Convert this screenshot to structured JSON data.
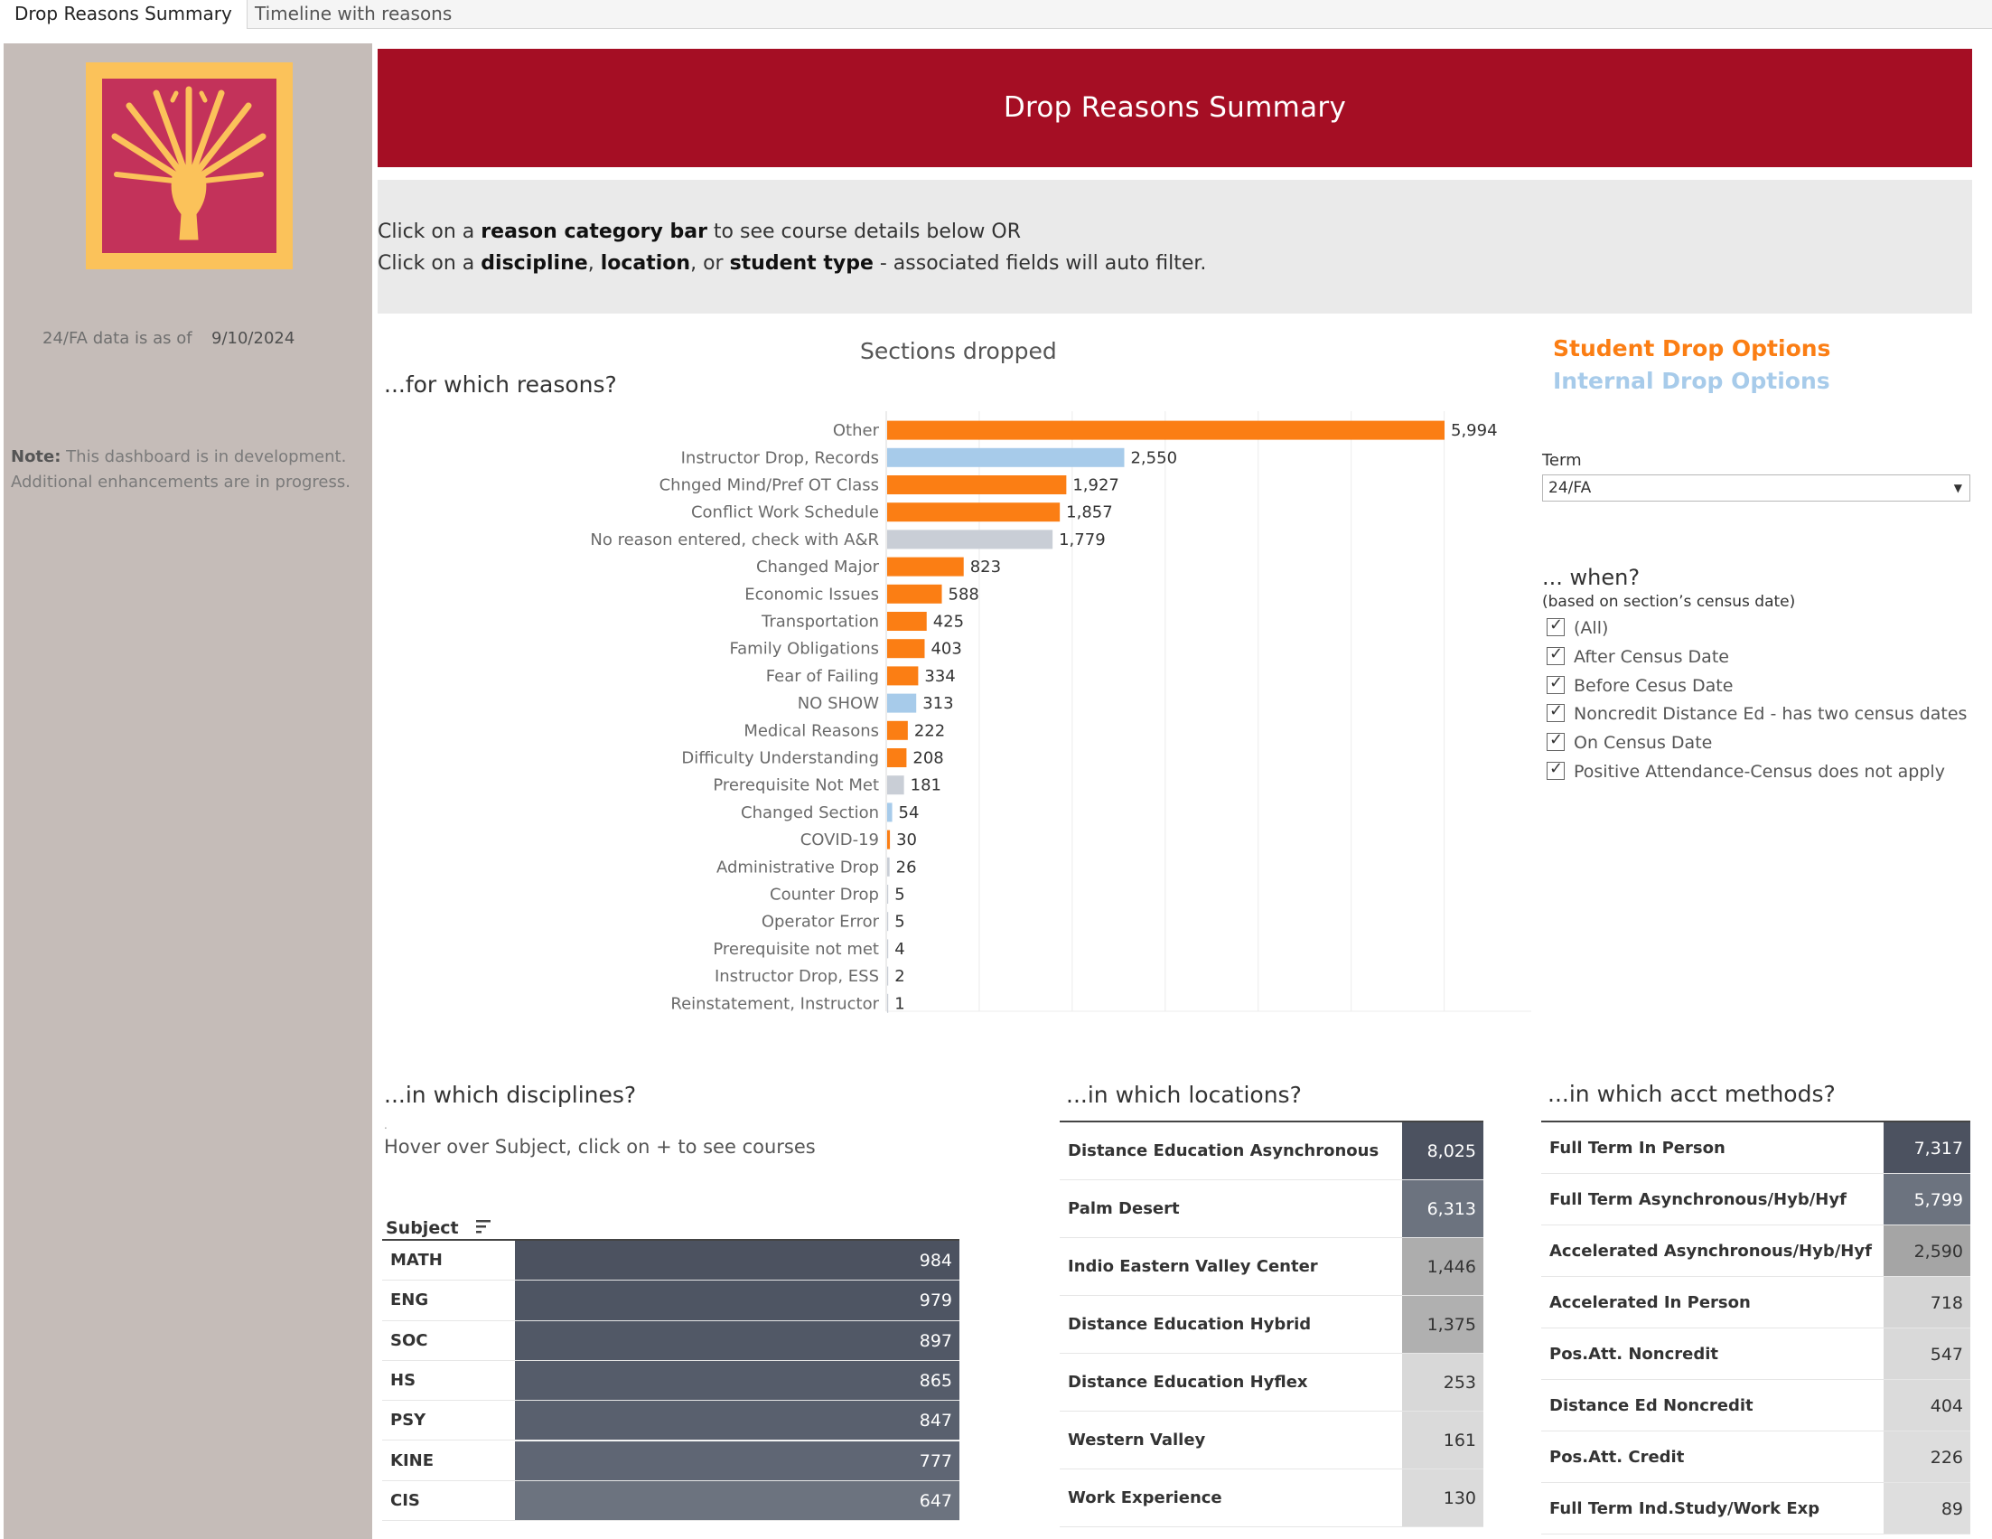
{
  "tabs": [
    {
      "label": "Drop Reasons Summary",
      "active": true
    },
    {
      "label": "Timeline with reasons",
      "active": false
    }
  ],
  "left_panel": {
    "as_of_label": "24/FA data is as of",
    "as_of_date": "9/10/2024",
    "note_label": "Note:",
    "note_text": " This dashboard is in development. Additional enhancements are in progress."
  },
  "header": {
    "title": "Drop Reasons Summary"
  },
  "instructions": {
    "l1_a": "Click on a ",
    "l1_b": "reason category bar",
    "l1_c": " to see course details below OR",
    "l2_a": "Click on a ",
    "l2_b": "discipline",
    "l2_c": ", ",
    "l2_d": "location",
    "l2_e": ", or ",
    "l2_f": "student type",
    "l2_g": " - associated fields will auto filter."
  },
  "reasons": {
    "chart_title": "Sections dropped",
    "section_title": "...for which reasons?"
  },
  "legend": {
    "student": "Student Drop Options",
    "internal": "Internal Drop Options"
  },
  "colors": {
    "student": "#fb7e14",
    "internal": "#a7cbea",
    "none": "#c9ced6",
    "header": "#a50e24"
  },
  "filters": {
    "term_label": "Term",
    "term_value": "24/FA",
    "when_title": "... when?",
    "when_sub": "(based on section’s census date)",
    "options": [
      "(All)",
      "After Census Date",
      "Before Cesus Date",
      "Noncredit Distance Ed - has two census dates",
      "On Census Date",
      "Positive Attendance-Census does not apply"
    ]
  },
  "chart_data": {
    "type": "bar",
    "orientation": "horizontal",
    "categories": [
      "Other",
      "Instructor Drop, Records",
      "Chnged Mind/Pref OT Class",
      "Conflict  Work Schedule",
      "No reason entered, check with A&R",
      "Changed Major",
      "Economic Issues",
      "Transportation",
      "Family Obligations",
      "Fear of Failing",
      "NO SHOW",
      "Medical Reasons",
      "Difficulty Understanding",
      "Prerequisite Not Met",
      "Changed Section",
      "COVID-19",
      "Administrative Drop",
      "Counter Drop",
      "Operator Error",
      "Prerequisite not met",
      "Instructor Drop, ESS",
      "Reinstatement, Instructor"
    ],
    "values": [
      5994,
      2550,
      1927,
      1857,
      1779,
      823,
      588,
      425,
      403,
      334,
      313,
      222,
      208,
      181,
      54,
      30,
      26,
      5,
      5,
      4,
      2,
      1
    ],
    "labels": [
      "5,994",
      "2,550",
      "1,927",
      "1,857",
      "1,779",
      "823",
      "588",
      "425",
      "403",
      "334",
      "313",
      "222",
      "208",
      "181",
      "54",
      "30",
      "26",
      "5",
      "5",
      "4",
      "2",
      "1"
    ],
    "group": [
      "student",
      "internal",
      "student",
      "student",
      "none",
      "student",
      "student",
      "student",
      "student",
      "student",
      "internal",
      "student",
      "student",
      "none",
      "internal",
      "student",
      "none",
      "none",
      "none",
      "none",
      "none",
      "none"
    ],
    "xlim": [
      0,
      7000
    ]
  },
  "disciplines": {
    "title": "...in which disciplines?",
    "hint": "Hover over Subject, click on + to see courses",
    "dot": ".",
    "column_header": "Subject",
    "rows": [
      {
        "subject": "MATH",
        "value": "984"
      },
      {
        "subject": "ENG",
        "value": "979"
      },
      {
        "subject": "SOC",
        "value": "897"
      },
      {
        "subject": "HS",
        "value": "865"
      },
      {
        "subject": "PSY",
        "value": "847"
      },
      {
        "subject": "KINE",
        "value": "777"
      },
      {
        "subject": "CIS",
        "value": "647"
      }
    ]
  },
  "locations": {
    "title": "...in which locations?",
    "rows": [
      {
        "name": "Distance Education Asynchronous",
        "value": "8,025"
      },
      {
        "name": "Palm Desert",
        "value": "6,313"
      },
      {
        "name": "Indio Eastern Valley Center",
        "value": "1,446"
      },
      {
        "name": "Distance Education Hybrid",
        "value": "1,375"
      },
      {
        "name": "Distance Education Hyflex",
        "value": "253"
      },
      {
        "name": "Western Valley",
        "value": "161"
      },
      {
        "name": "Work Experience",
        "value": "130"
      }
    ]
  },
  "methods": {
    "title": "...in which acct methods?",
    "rows": [
      {
        "name": "Full Term In Person",
        "value": "7,317"
      },
      {
        "name": "Full Term Asynchronous/Hyb/Hyf",
        "value": "5,799"
      },
      {
        "name": "Accelerated Asynchronous/Hyb/Hyf",
        "value": "2,590"
      },
      {
        "name": "Accelerated In Person",
        "value": "718"
      },
      {
        "name": "Pos.Att. Noncredit",
        "value": "547"
      },
      {
        "name": "Distance Ed Noncredit",
        "value": "404"
      },
      {
        "name": "Pos.Att. Credit",
        "value": "226"
      },
      {
        "name": "Full Term Ind.Study/Work Exp",
        "value": "89"
      }
    ]
  }
}
